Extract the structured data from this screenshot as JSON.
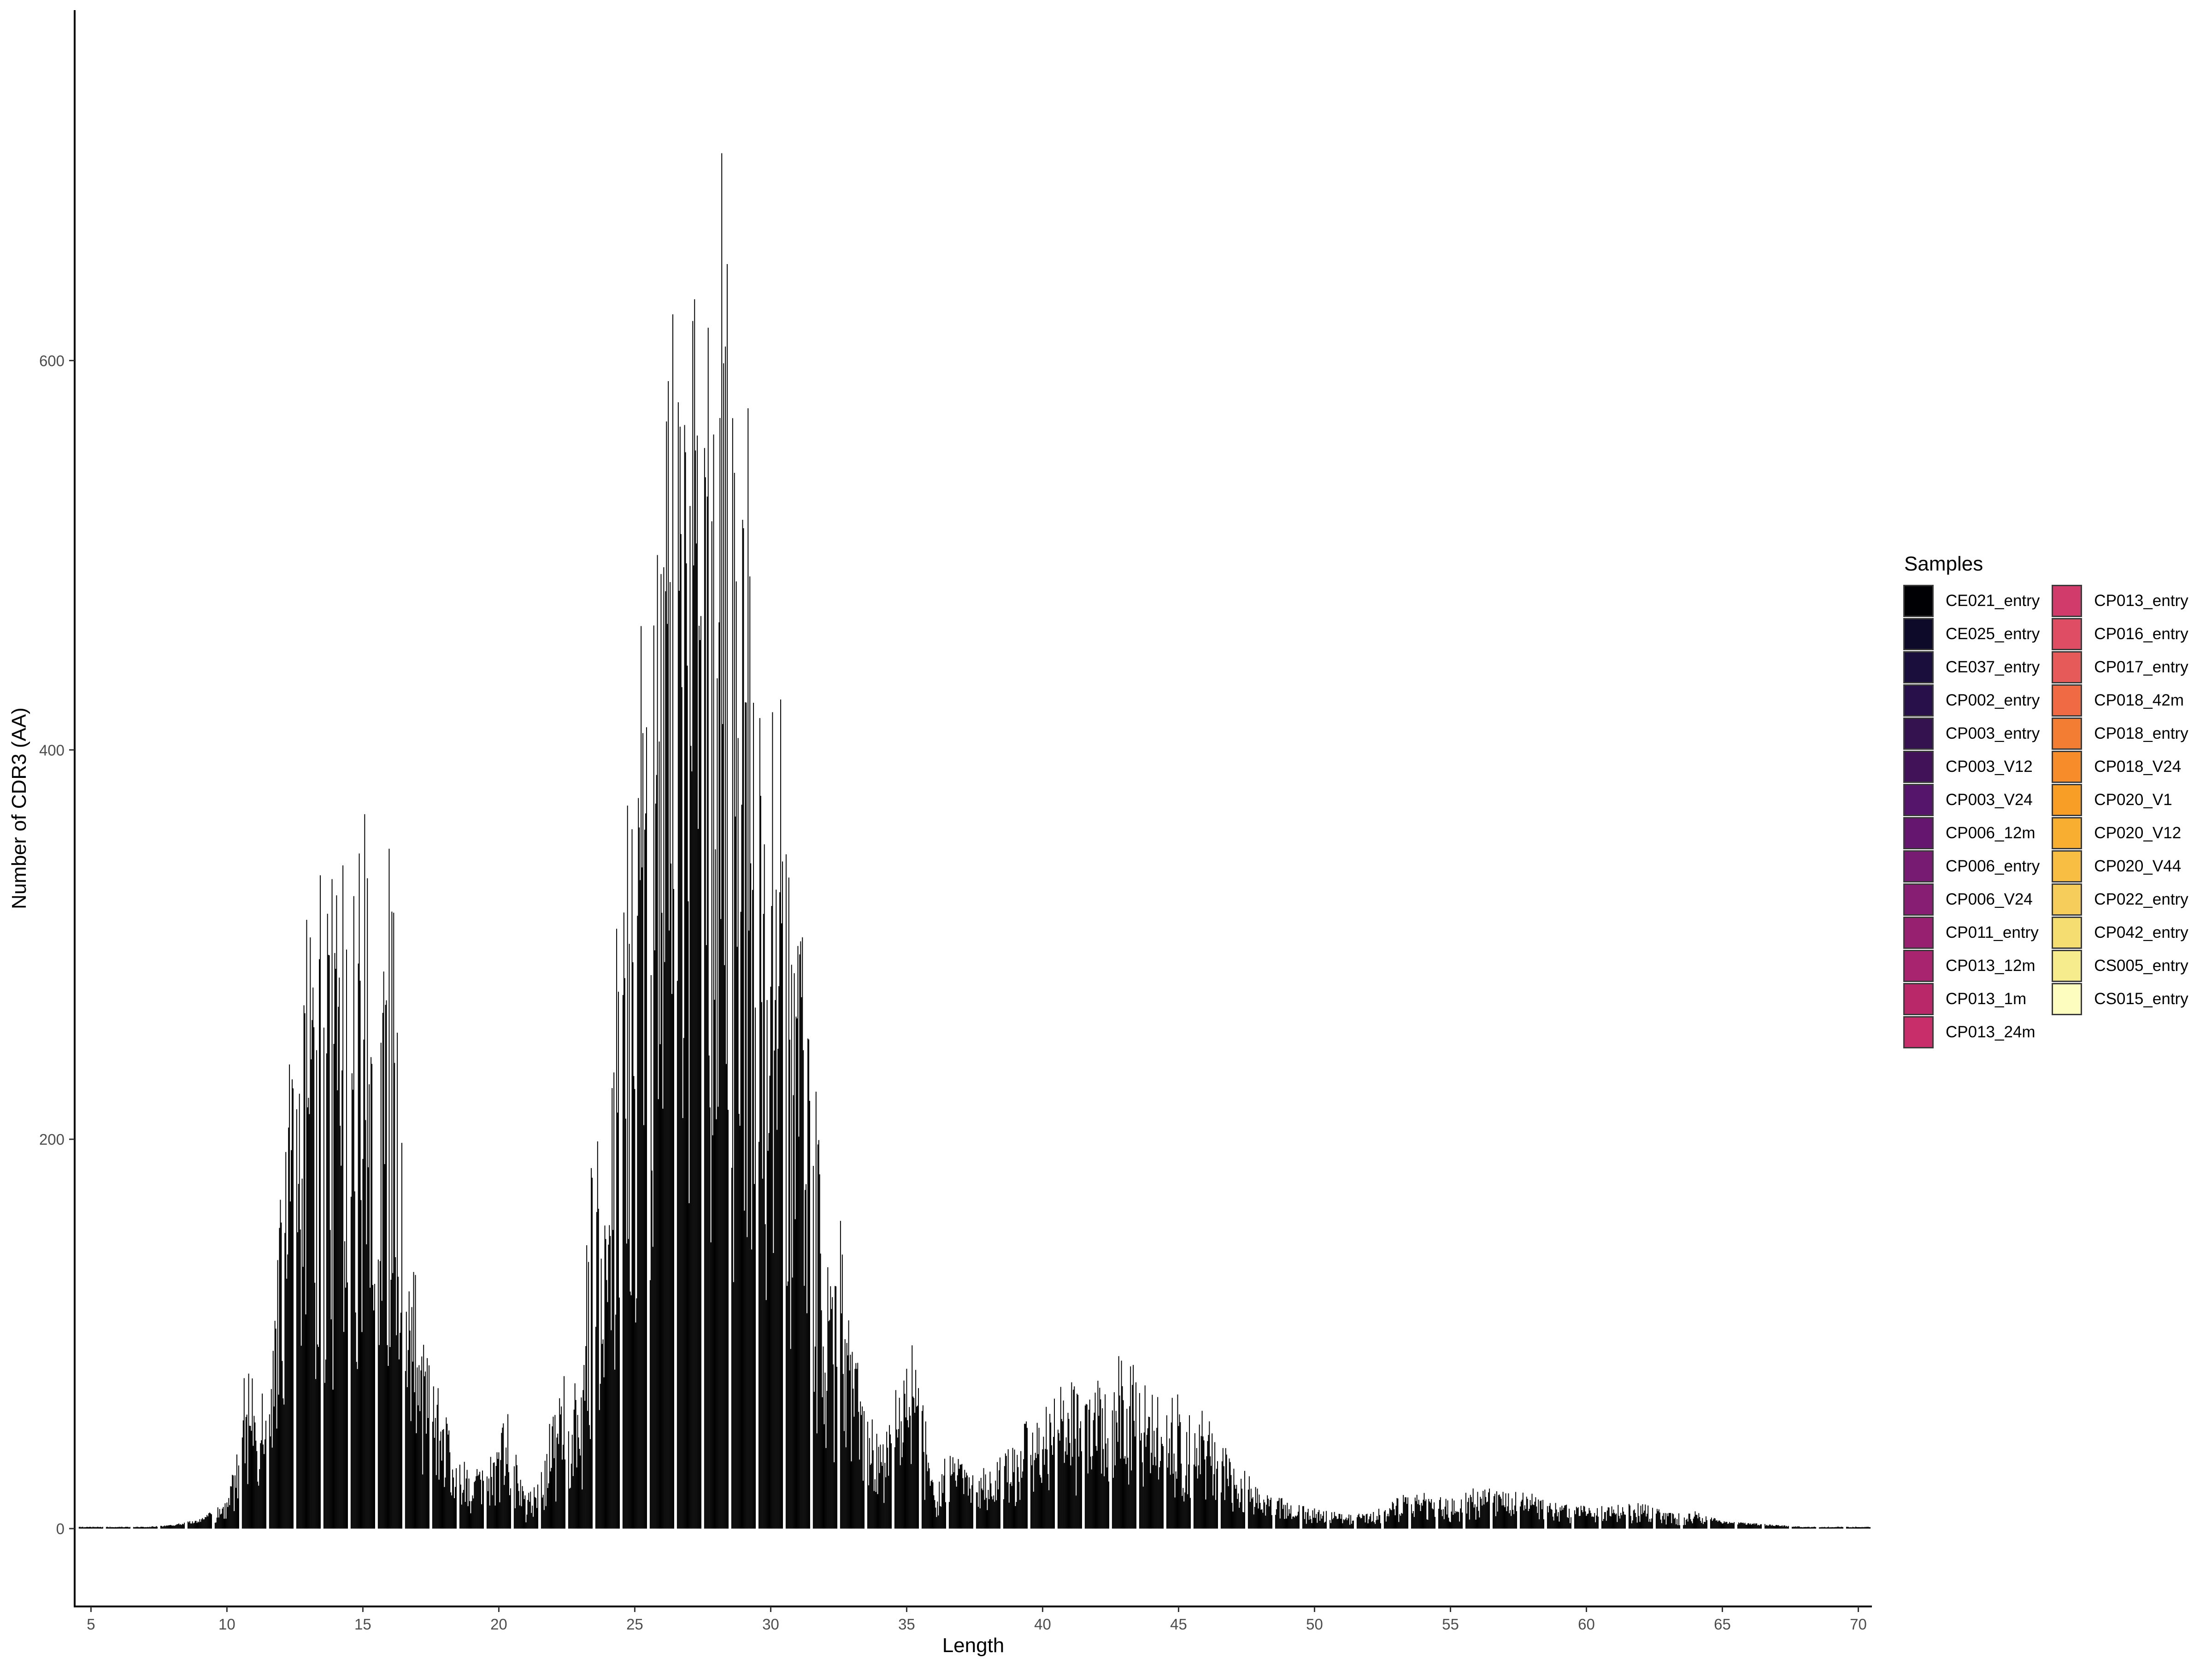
{
  "chart_data": {
    "type": "bar",
    "title": "",
    "xlabel": "Length",
    "ylabel": "Number of CDR3 (AA)",
    "xlim": [
      4.4,
      70.5
    ],
    "ylim": [
      -40,
      780
    ],
    "xticks": [
      5,
      10,
      15,
      20,
      25,
      30,
      35,
      40,
      45,
      50,
      55,
      60,
      65,
      70
    ],
    "yticks": [
      0,
      200,
      400,
      600
    ],
    "grid": false,
    "legend_title": "Samples",
    "legend_placement": "right",
    "bar_color": "#000000",
    "note": "Bars are stacked/dodged per sample within each integer length; visible silhouette approximates per-position maxima.",
    "series": [
      {
        "name": "CE021_entry",
        "color": "#000004"
      },
      {
        "name": "CE025_entry",
        "color": "#0d0a29"
      },
      {
        "name": "CE037_entry",
        "color": "#1a0f3c"
      },
      {
        "name": "CP002_entry",
        "color": "#28114a"
      },
      {
        "name": "CP003_entry",
        "color": "#34124f"
      },
      {
        "name": "CP003_V12",
        "color": "#421259"
      },
      {
        "name": "CP003_V24",
        "color": "#55156a"
      },
      {
        "name": "CP006_12m",
        "color": "#65166e"
      },
      {
        "name": "CP006_entry",
        "color": "#761a72"
      },
      {
        "name": "CP006_V24",
        "color": "#871e73"
      },
      {
        "name": "CP011_entry",
        "color": "#982070"
      },
      {
        "name": "CP013_12m",
        "color": "#a8246e"
      },
      {
        "name": "CP013_1m",
        "color": "#b92969"
      },
      {
        "name": "CP013_24m",
        "color": "#c72e6a"
      },
      {
        "name": "CP013_entry",
        "color": "#d13b6b"
      },
      {
        "name": "CP016_entry",
        "color": "#df4d65"
      },
      {
        "name": "CP017_entry",
        "color": "#e65a59"
      },
      {
        "name": "CP018_42m",
        "color": "#f06a43"
      },
      {
        "name": "CP018_entry",
        "color": "#f47d34"
      },
      {
        "name": "CP018_V24",
        "color": "#f68c2a"
      },
      {
        "name": "CP020_V1",
        "color": "#f89e26"
      },
      {
        "name": "CP020_V12",
        "color": "#f8ae31"
      },
      {
        "name": "CP020_V44",
        "color": "#f8be43"
      },
      {
        "name": "CP022_entry",
        "color": "#f6cd5a"
      },
      {
        "name": "CP042_entry",
        "color": "#f5dd72"
      },
      {
        "name": "CS005_entry",
        "color": "#f7ec8d"
      },
      {
        "name": "CS015_entry",
        "color": "#fcfdbf"
      }
    ],
    "envelope_peaks": [
      {
        "x": 5,
        "y": 1
      },
      {
        "x": 6,
        "y": 1
      },
      {
        "x": 7,
        "y": 1
      },
      {
        "x": 8,
        "y": 2
      },
      {
        "x": 9,
        "y": 5
      },
      {
        "x": 10,
        "y": 14
      },
      {
        "x": 10.8,
        "y": 100
      },
      {
        "x": 11.5,
        "y": 60
      },
      {
        "x": 12,
        "y": 180
      },
      {
        "x": 12.6,
        "y": 300
      },
      {
        "x": 13,
        "y": 335
      },
      {
        "x": 13.8,
        "y": 355
      },
      {
        "x": 14.3,
        "y": 342
      },
      {
        "x": 15,
        "y": 360
      },
      {
        "x": 15.1,
        "y": 430
      },
      {
        "x": 15.5,
        "y": 230
      },
      {
        "x": 16,
        "y": 383
      },
      {
        "x": 16.5,
        "y": 180
      },
      {
        "x": 17,
        "y": 125
      },
      {
        "x": 18,
        "y": 63
      },
      {
        "x": 19,
        "y": 25
      },
      {
        "x": 20.3,
        "y": 62
      },
      {
        "x": 21,
        "y": 15
      },
      {
        "x": 21.6,
        "y": 38
      },
      {
        "x": 22.5,
        "y": 92
      },
      {
        "x": 23,
        "y": 70
      },
      {
        "x": 23.5,
        "y": 235
      },
      {
        "x": 24,
        "y": 160
      },
      {
        "x": 24.5,
        "y": 398
      },
      {
        "x": 25,
        "y": 408
      },
      {
        "x": 25.5,
        "y": 533
      },
      {
        "x": 26,
        "y": 605
      },
      {
        "x": 26.5,
        "y": 642
      },
      {
        "x": 27,
        "y": 550
      },
      {
        "x": 27.2,
        "y": 740
      },
      {
        "x": 27.6,
        "y": 620
      },
      {
        "x": 28,
        "y": 615
      },
      {
        "x": 28.2,
        "y": 743
      },
      {
        "x": 28.8,
        "y": 535
      },
      {
        "x": 29.2,
        "y": 611
      },
      {
        "x": 29.6,
        "y": 418
      },
      {
        "x": 30,
        "y": 405
      },
      {
        "x": 30.2,
        "y": 498
      },
      {
        "x": 30.8,
        "y": 290
      },
      {
        "x": 31.2,
        "y": 322
      },
      {
        "x": 32,
        "y": 160
      },
      {
        "x": 32.6,
        "y": 158
      },
      {
        "x": 33,
        "y": 100
      },
      {
        "x": 34,
        "y": 45
      },
      {
        "x": 35.3,
        "y": 106
      },
      {
        "x": 36,
        "y": 20
      },
      {
        "x": 36.6,
        "y": 44
      },
      {
        "x": 37.5,
        "y": 28
      },
      {
        "x": 38.5,
        "y": 42
      },
      {
        "x": 39.5,
        "y": 58
      },
      {
        "x": 40.5,
        "y": 72
      },
      {
        "x": 41.2,
        "y": 80
      },
      {
        "x": 42,
        "y": 75
      },
      {
        "x": 42.3,
        "y": 92
      },
      {
        "x": 43,
        "y": 88
      },
      {
        "x": 44,
        "y": 78
      },
      {
        "x": 45,
        "y": 70
      },
      {
        "x": 45.8,
        "y": 62
      },
      {
        "x": 47,
        "y": 38
      },
      {
        "x": 48,
        "y": 20
      },
      {
        "x": 49.5,
        "y": 12
      },
      {
        "x": 51,
        "y": 8
      },
      {
        "x": 52,
        "y": 8
      },
      {
        "x": 53.6,
        "y": 20
      },
      {
        "x": 55,
        "y": 15
      },
      {
        "x": 56,
        "y": 22
      },
      {
        "x": 57,
        "y": 20
      },
      {
        "x": 58,
        "y": 18
      },
      {
        "x": 59,
        "y": 13
      },
      {
        "x": 60,
        "y": 12
      },
      {
        "x": 61,
        "y": 12
      },
      {
        "x": 62.2,
        "y": 14
      },
      {
        "x": 63,
        "y": 8
      },
      {
        "x": 64,
        "y": 9
      },
      {
        "x": 65,
        "y": 4
      },
      {
        "x": 66,
        "y": 3
      },
      {
        "x": 67,
        "y": 2
      },
      {
        "x": 68,
        "y": 1
      },
      {
        "x": 69,
        "y": 1
      },
      {
        "x": 70,
        "y": 1
      }
    ]
  }
}
